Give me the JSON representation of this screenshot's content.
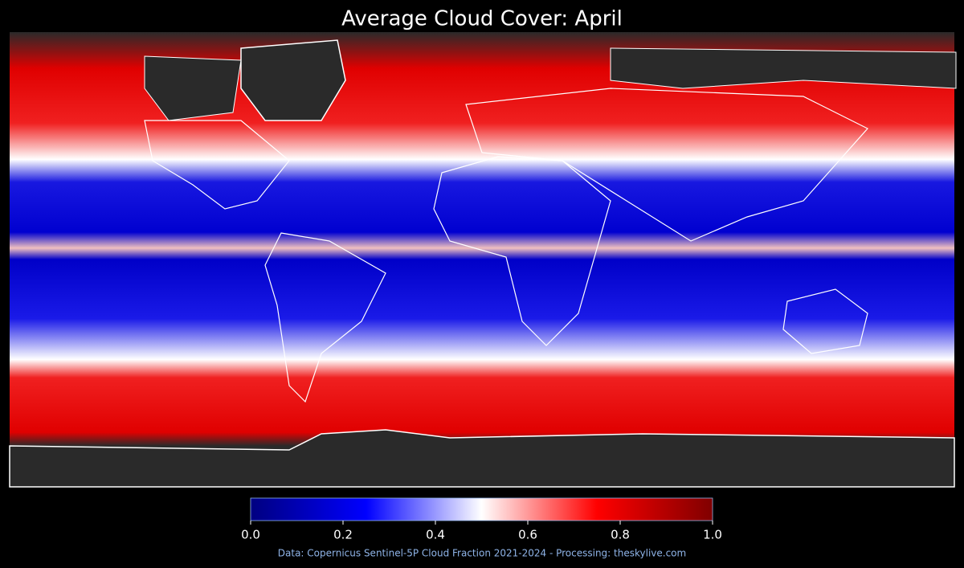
{
  "title": "Average Cloud Cover: April",
  "colorbar": {
    "range": [
      0,
      1
    ],
    "colors": [
      "#000080",
      "#0000ff",
      "#ffffff",
      "#ff0000",
      "#800000"
    ],
    "ticks": [
      {
        "value": 0,
        "label": "0.0"
      },
      0.2,
      0.4,
      0.6,
      0.8,
      {
        "value": 1,
        "label": "1.0"
      }
    ]
  },
  "source": "Data: Copernicus Sentinel-5P Cloud Fraction 2021-2024 - Processing: theskylive.com"
}
